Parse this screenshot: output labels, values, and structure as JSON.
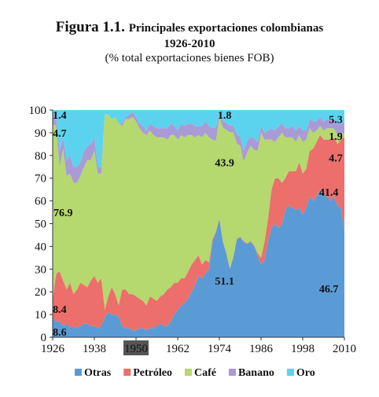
{
  "figure": {
    "label": "Figura 1.1.",
    "title": "Principales exportaciones colombianas",
    "years": "1926-2010",
    "subtitle": "(% total exportaciones bienes FOB)"
  },
  "chart_data": {
    "type": "area",
    "stacked": true,
    "x": [
      1926,
      1927,
      1928,
      1929,
      1930,
      1931,
      1932,
      1933,
      1934,
      1935,
      1936,
      1937,
      1938,
      1939,
      1940,
      1941,
      1942,
      1943,
      1944,
      1945,
      1946,
      1947,
      1948,
      1949,
      1950,
      1951,
      1952,
      1953,
      1954,
      1955,
      1956,
      1957,
      1958,
      1959,
      1960,
      1961,
      1962,
      1963,
      1964,
      1965,
      1966,
      1967,
      1968,
      1969,
      1970,
      1971,
      1972,
      1973,
      1974,
      1975,
      1976,
      1977,
      1978,
      1979,
      1980,
      1981,
      1982,
      1983,
      1984,
      1985,
      1986,
      1987,
      1988,
      1989,
      1990,
      1991,
      1992,
      1993,
      1994,
      1995,
      1996,
      1997,
      1998,
      1999,
      2000,
      2001,
      2002,
      2003,
      2004,
      2005,
      2006,
      2007,
      2008,
      2009,
      2010
    ],
    "series": [
      {
        "name": "Otras",
        "color": "#5b9bd5",
        "values": [
          8.6,
          7,
          7,
          5,
          6,
          4,
          5,
          4,
          5,
          6,
          6,
          5,
          5,
          4,
          5,
          9,
          11,
          10,
          10,
          9,
          5,
          4,
          4,
          3,
          3,
          4,
          4,
          3,
          4,
          4,
          5,
          6,
          5,
          5,
          7,
          10,
          12,
          14,
          15,
          17,
          20,
          23,
          27,
          26,
          28,
          30,
          42,
          46,
          51.1,
          42,
          37,
          30,
          35,
          43,
          44,
          42,
          41,
          42,
          40,
          36,
          32,
          34,
          42,
          48,
          50,
          48,
          50,
          56,
          58,
          57,
          56,
          57,
          54,
          57,
          62,
          60,
          62,
          65,
          63,
          62,
          60,
          62,
          58,
          57,
          46.7
        ]
      },
      {
        "name": "Petróleo",
        "color": "#ec6f6b",
        "values": [
          8.4,
          21,
          22,
          20,
          15,
          20,
          14,
          17,
          19,
          17,
          16,
          20,
          22,
          20,
          21,
          3,
          7,
          12,
          9,
          5,
          16,
          17,
          15,
          16,
          15,
          13,
          12,
          11,
          14,
          13,
          11,
          12,
          14,
          16,
          15,
          14,
          12,
          12,
          11,
          12,
          12,
          11,
          9,
          6,
          6,
          3,
          1,
          0.5,
          0.3,
          0.3,
          0.3,
          0.3,
          0.3,
          0.3,
          0.3,
          0.3,
          0.3,
          0.3,
          0.5,
          1,
          3,
          8,
          10,
          17,
          20,
          22,
          18,
          14,
          15,
          16,
          17,
          20,
          18,
          17,
          20,
          23,
          24,
          24,
          24,
          25,
          27,
          26,
          27,
          30,
          41.4
        ]
      },
      {
        "name": "Café",
        "color": "#b5d86f",
        "values": [
          76.9,
          65,
          46,
          58,
          50,
          48,
          49,
          47,
          47,
          52,
          56,
          53,
          55,
          48,
          46,
          86,
          80,
          74,
          78,
          80,
          72,
          75,
          77,
          78,
          77,
          75,
          74,
          75,
          73,
          72,
          72,
          70,
          69,
          66,
          67,
          65,
          63,
          63,
          62,
          60,
          57,
          54,
          53,
          56,
          56,
          55,
          44,
          40,
          43.9,
          50,
          54,
          60,
          55,
          42,
          40,
          35,
          40,
          42,
          42,
          45,
          55,
          45,
          35,
          22,
          16,
          18,
          22,
          18,
          15,
          15,
          13,
          12,
          14,
          13,
          10,
          7,
          5,
          4,
          4,
          5,
          5,
          4,
          4,
          2,
          1.9
        ]
      },
      {
        "name": "Banano",
        "color": "#a99bd6",
        "values": [
          4.7,
          4,
          7,
          5,
          7,
          8,
          7,
          7,
          6,
          7,
          6,
          7,
          6,
          3,
          3,
          0,
          0,
          0,
          0,
          0,
          1,
          1,
          2,
          2,
          2,
          2,
          3,
          2,
          3,
          4,
          4,
          4,
          4,
          5,
          5,
          4,
          4,
          5,
          5,
          5,
          5,
          5,
          4,
          5,
          5,
          5,
          5,
          6,
          1,
          3,
          3,
          3,
          3,
          4,
          4,
          5,
          5,
          4,
          5,
          4,
          3,
          3,
          4,
          5,
          5,
          5,
          4,
          4,
          4,
          5,
          5,
          4,
          5,
          4,
          4,
          5,
          4,
          4,
          4,
          4,
          4,
          4,
          5,
          5,
          4.7
        ]
      },
      {
        "name": "Oro",
        "color": "#5cd3ee",
        "values": [
          1.4,
          3,
          18,
          12,
          22,
          20,
          25,
          25,
          23,
          18,
          16,
          15,
          12,
          25,
          25,
          2,
          2,
          4,
          3,
          6,
          6,
          3,
          2,
          1,
          3,
          6,
          7,
          9,
          6,
          7,
          8,
          8,
          8,
          8,
          6,
          7,
          9,
          6,
          7,
          6,
          6,
          7,
          7,
          7,
          5,
          7,
          8,
          7.5,
          1.8,
          4.7,
          5.7,
          6.7,
          6.7,
          10.7,
          11.7,
          17.7,
          13.7,
          11.7,
          12.5,
          14,
          7,
          10,
          9,
          8,
          9,
          7,
          6,
          8,
          8,
          7,
          9,
          7,
          9,
          9,
          4,
          5,
          5,
          3,
          5,
          4,
          4,
          4,
          6,
          6,
          5.3
        ]
      }
    ],
    "xticks": [
      1926,
      1938,
      1950,
      1962,
      1974,
      1986,
      1998,
      2010
    ],
    "highlight_tick": 1950,
    "yticks": [
      0,
      10,
      20,
      30,
      40,
      50,
      60,
      70,
      80,
      90,
      100
    ],
    "ylim": [
      0,
      100
    ],
    "xlim": [
      1926,
      2010
    ],
    "legend_position": "bottom",
    "annotations": [
      {
        "text": "1.4",
        "x": 1928,
        "y": 98
      },
      {
        "text": "4.7",
        "x": 1928,
        "y": 90
      },
      {
        "text": "76.9",
        "x": 1929,
        "y": 55
      },
      {
        "text": "8.4",
        "x": 1928,
        "y": 12.5
      },
      {
        "text": "8.6",
        "x": 1928,
        "y": 2.5
      },
      {
        "text": "1.8",
        "x": 1975.5,
        "y": 98
      },
      {
        "text": "43.9",
        "x": 1975.5,
        "y": 77
      },
      {
        "text": "51.1",
        "x": 1975.5,
        "y": 25
      },
      {
        "text": "5.3",
        "x": 2007.5,
        "y": 96
      },
      {
        "text": "1.9",
        "x": 2007.5,
        "y": 88.5
      },
      {
        "text": "4.7",
        "x": 2007.5,
        "y": 79
      },
      {
        "text": "41.4",
        "x": 2005.5,
        "y": 64
      },
      {
        "text": "46.7",
        "x": 2005.5,
        "y": 21.5
      }
    ]
  }
}
